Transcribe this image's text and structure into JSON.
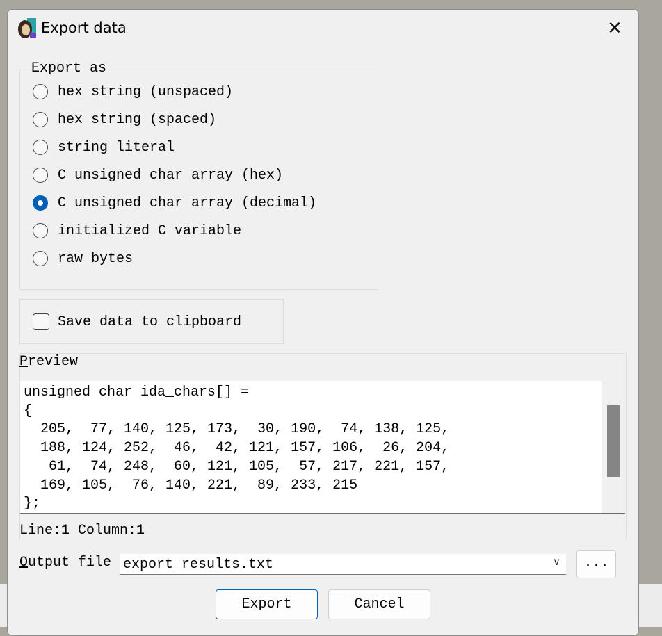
{
  "dialog": {
    "title": "Export data",
    "icon": "ida-app-icon"
  },
  "export_as": {
    "label": "Export as",
    "options": [
      {
        "label": "hex string (unspaced)",
        "selected": false
      },
      {
        "label": "hex string (spaced)",
        "selected": false
      },
      {
        "label": "string literal",
        "selected": false
      },
      {
        "label": "C unsigned char array (hex)",
        "selected": false
      },
      {
        "label": "C unsigned char array (decimal)",
        "selected": true
      },
      {
        "label": "initialized C variable",
        "selected": false
      },
      {
        "label": "raw bytes",
        "selected": false
      }
    ]
  },
  "clipboard": {
    "label": "Save data to clipboard",
    "checked": false
  },
  "preview": {
    "label_accel": "P",
    "label_rest": "review",
    "text": "unsigned char ida_chars[] =\n{\n  205,  77, 140, 125, 173,  30, 190,  74, 138, 125,\n  188, 124, 252,  46,  42, 121, 157, 106,  26, 204,\n   61,  74, 248,  60, 121, 105,  57, 217, 221, 157,\n  169, 105,  76, 140, 221,  89, 233, 215\n};",
    "status": "Line:1  Column:1"
  },
  "output_file": {
    "label_accel": "O",
    "label_rest": "utput file",
    "value": "export_results.txt",
    "browse_label": "..."
  },
  "buttons": {
    "export": "Export",
    "cancel": "Cancel"
  },
  "colors": {
    "accent": "#005fb8"
  }
}
